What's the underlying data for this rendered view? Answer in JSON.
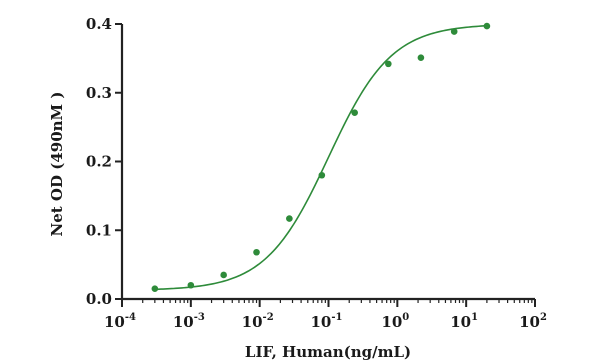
{
  "chart_data": {
    "type": "scatter",
    "xlabel": "LIF, Human(ng/mL)",
    "ylabel": "Net OD (490nM )",
    "x_scale": "log",
    "xlim": [
      0.0001,
      100
    ],
    "ylim": [
      0,
      0.4
    ],
    "x_ticks": [
      {
        "value": 0.0001,
        "base": "10",
        "exp": "-4"
      },
      {
        "value": 0.001,
        "base": "10",
        "exp": "-3"
      },
      {
        "value": 0.01,
        "base": "10",
        "exp": "-2"
      },
      {
        "value": 0.1,
        "base": "10",
        "exp": "-1"
      },
      {
        "value": 1,
        "base": "10",
        "exp": "0"
      },
      {
        "value": 10,
        "base": "10",
        "exp": "1"
      },
      {
        "value": 100,
        "base": "10",
        "exp": "2"
      }
    ],
    "y_ticks": [
      {
        "value": 0.0,
        "label": "0.0"
      },
      {
        "value": 0.1,
        "label": "0.1"
      },
      {
        "value": 0.2,
        "label": "0.2"
      },
      {
        "value": 0.3,
        "label": "0.3"
      },
      {
        "value": 0.4,
        "label": "0.4"
      }
    ],
    "grid": false,
    "color": "#2e8b3a",
    "points": [
      {
        "x": 0.0003,
        "y": 0.015
      },
      {
        "x": 0.001,
        "y": 0.02
      },
      {
        "x": 0.003,
        "y": 0.035
      },
      {
        "x": 0.009,
        "y": 0.068
      },
      {
        "x": 0.027,
        "y": 0.117
      },
      {
        "x": 0.08,
        "y": 0.18
      },
      {
        "x": 0.24,
        "y": 0.271
      },
      {
        "x": 0.74,
        "y": 0.342
      },
      {
        "x": 2.2,
        "y": 0.351
      },
      {
        "x": 6.7,
        "y": 0.389
      },
      {
        "x": 20,
        "y": 0.397
      }
    ],
    "fit": {
      "model": "4PL",
      "bottom": 0.0125,
      "top": 0.4,
      "ec50": 0.1,
      "hill": 0.95
    }
  }
}
